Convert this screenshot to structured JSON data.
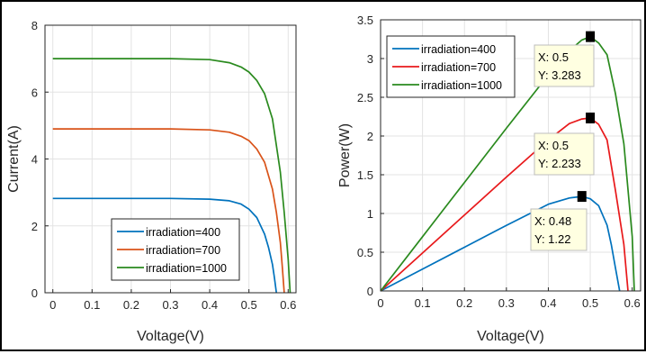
{
  "chart_data": [
    {
      "type": "line",
      "xlabel": "Voltage(V)",
      "ylabel": "Current(A)",
      "xlim": [
        -0.02,
        0.62
      ],
      "ylim": [
        0,
        8
      ],
      "xticks": [
        "0",
        "0.1",
        "0.2",
        "0.3",
        "0.4",
        "0.5",
        "0.6"
      ],
      "yticks": [
        "0",
        "2",
        "4",
        "6",
        "8"
      ],
      "grid": true,
      "legend": "bottom-right",
      "series": [
        {
          "name": "irradiation=400",
          "color": "#0072BD",
          "x": [
            0,
            0.1,
            0.2,
            0.3,
            0.4,
            0.45,
            0.48,
            0.5,
            0.52,
            0.54,
            0.55,
            0.56,
            0.565,
            0.57
          ],
          "y": [
            2.82,
            2.82,
            2.82,
            2.82,
            2.8,
            2.75,
            2.65,
            2.5,
            2.25,
            1.75,
            1.35,
            0.85,
            0.45,
            0
          ]
        },
        {
          "name": "irradiation=700",
          "color": "#D95319",
          "x": [
            0,
            0.1,
            0.2,
            0.3,
            0.4,
            0.45,
            0.48,
            0.5,
            0.52,
            0.54,
            0.56,
            0.57,
            0.58,
            0.585,
            0.59
          ],
          "y": [
            4.9,
            4.9,
            4.9,
            4.9,
            4.87,
            4.8,
            4.68,
            4.55,
            4.3,
            3.9,
            3.1,
            2.4,
            1.5,
            0.8,
            0
          ]
        },
        {
          "name": "irradiation=1000",
          "color": "#2A8A1E",
          "x": [
            0,
            0.1,
            0.2,
            0.3,
            0.4,
            0.45,
            0.48,
            0.5,
            0.52,
            0.54,
            0.56,
            0.58,
            0.59,
            0.6,
            0.605
          ],
          "y": [
            7.0,
            7.0,
            7.0,
            7.0,
            6.97,
            6.88,
            6.75,
            6.6,
            6.35,
            5.95,
            5.2,
            3.6,
            2.4,
            1.0,
            0
          ]
        }
      ]
    },
    {
      "type": "line",
      "xlabel": "Voltage(V)",
      "ylabel": "Power(W)",
      "xlim": [
        0,
        0.62
      ],
      "ylim": [
        0,
        3.5
      ],
      "xticks": [
        "0",
        "0.1",
        "0.2",
        "0.3",
        "0.4",
        "0.5",
        "0.6"
      ],
      "yticks": [
        "0",
        "0.5",
        "1",
        "1.5",
        "2",
        "2.5",
        "3",
        "3.5"
      ],
      "grid": true,
      "legend": "top-left",
      "series": [
        {
          "name": "irradiation=400",
          "color": "#0072BD",
          "x": [
            0,
            0.1,
            0.2,
            0.3,
            0.4,
            0.45,
            0.48,
            0.5,
            0.52,
            0.54,
            0.55,
            0.56,
            0.57
          ],
          "y": [
            0,
            0.282,
            0.564,
            0.846,
            1.12,
            1.2,
            1.22,
            1.19,
            1.1,
            0.85,
            0.6,
            0.3,
            0
          ]
        },
        {
          "name": "irradiation=700",
          "color": "#E8191B",
          "x": [
            0,
            0.1,
            0.2,
            0.3,
            0.4,
            0.45,
            0.48,
            0.5,
            0.52,
            0.54,
            0.56,
            0.58,
            0.59
          ],
          "y": [
            0,
            0.49,
            0.98,
            1.47,
            1.95,
            2.16,
            2.22,
            2.233,
            2.15,
            1.95,
            1.3,
            0.6,
            0
          ]
        },
        {
          "name": "irradiation=1000",
          "color": "#2A8A1E",
          "x": [
            0,
            0.1,
            0.2,
            0.3,
            0.4,
            0.45,
            0.48,
            0.5,
            0.52,
            0.54,
            0.56,
            0.58,
            0.6,
            0.605
          ],
          "y": [
            0,
            0.7,
            1.4,
            2.1,
            2.79,
            3.1,
            3.24,
            3.283,
            3.2,
            3.05,
            2.55,
            1.9,
            0.7,
            0
          ]
        }
      ],
      "annotations": [
        {
          "marker_x": 0.5,
          "marker_y": 3.283,
          "text_x": "X: 0.5",
          "text_y": "Y: 3.283"
        },
        {
          "marker_x": 0.5,
          "marker_y": 2.233,
          "text_x": "X: 0.5",
          "text_y": "Y: 2.233"
        },
        {
          "marker_x": 0.48,
          "marker_y": 1.22,
          "text_x": "X: 0.48",
          "text_y": "Y: 1.22"
        }
      ]
    }
  ]
}
